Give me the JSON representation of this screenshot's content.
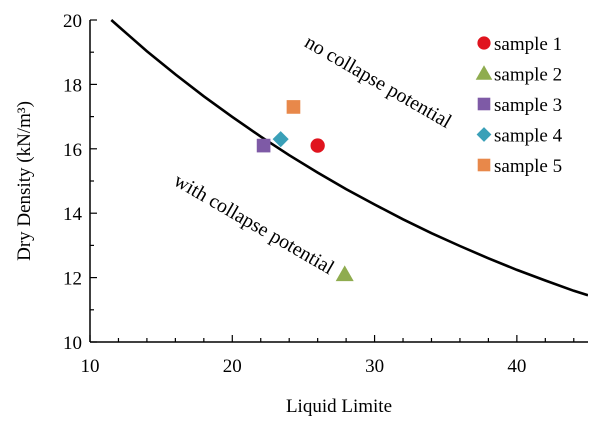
{
  "chart_data": {
    "type": "scatter",
    "xlabel": "Liquid Limite",
    "ylabel": "Dry Density (kN/m³)",
    "xlim": [
      10,
      45
    ],
    "ylim": [
      10,
      20
    ],
    "x_ticks": [
      "10",
      "20",
      "30",
      "40"
    ],
    "y_ticks": [
      "10",
      "12",
      "14",
      "16",
      "18",
      "20"
    ],
    "grid": false,
    "legend_position": "top-right",
    "series": [
      {
        "name": "sample 1",
        "marker": "circle",
        "color": "#e0141e",
        "x": [
          26.0
        ],
        "y": [
          16.1
        ]
      },
      {
        "name": "sample 2",
        "marker": "triangle",
        "color": "#8fac4f",
        "x": [
          27.9
        ],
        "y": [
          12.1
        ]
      },
      {
        "name": "sample 3",
        "marker": "square",
        "color": "#7e5aa6",
        "x": [
          22.2
        ],
        "y": [
          16.1
        ]
      },
      {
        "name": "sample 4",
        "marker": "diamond",
        "color": "#3aa0b8",
        "x": [
          23.4
        ],
        "y": [
          16.3
        ]
      },
      {
        "name": "sample 5",
        "marker": "square",
        "color": "#e8884a",
        "x": [
          24.3
        ],
        "y": [
          17.3
        ]
      }
    ],
    "boundary_curve": {
      "color": "#000000",
      "x": [
        11.5,
        12,
        14,
        16,
        18,
        20,
        22,
        24,
        26,
        28,
        30,
        32,
        34,
        36,
        38,
        40,
        42,
        44,
        45
      ],
      "y": [
        20.0,
        19.8,
        19.03,
        18.31,
        17.63,
        16.99,
        16.38,
        15.8,
        15.26,
        14.75,
        14.27,
        13.81,
        13.38,
        12.98,
        12.6,
        12.24,
        11.91,
        11.59,
        11.45
      ]
    },
    "annotations": [
      {
        "text": "no collapse potential",
        "x": 25.0,
        "y": 19.2
      },
      {
        "text": "with collapse potential",
        "x": 15.8,
        "y": 14.9
      }
    ]
  }
}
